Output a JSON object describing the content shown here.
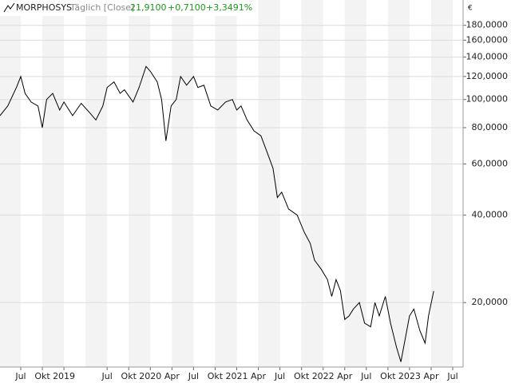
{
  "chart_data": {
    "type": "line",
    "title": "MORPHOSYS",
    "interval_label": "Täglich [Close]",
    "last": "21,9100",
    "change": "+0,7100",
    "change_pct": "+3,3491%",
    "currency": "€",
    "log_scale": true,
    "xlim": [
      2018.26,
      2023.62
    ],
    "ylim": [
      12,
      220
    ],
    "yticks": [
      {
        "value": 20,
        "label": "20,0000"
      },
      {
        "value": 40,
        "label": "40,0000"
      },
      {
        "value": 60,
        "label": "60,0000"
      },
      {
        "value": 80,
        "label": "80,0000"
      },
      {
        "value": 100,
        "label": "100,0000"
      },
      {
        "value": 120,
        "label": "120,0000"
      },
      {
        "value": 140,
        "label": "140,0000"
      },
      {
        "value": 160,
        "label": "160,0000"
      },
      {
        "value": 180,
        "label": "180,0000"
      }
    ],
    "xticks": [
      {
        "value": 2018.5,
        "label": "Jul"
      },
      {
        "value": 2018.75,
        "label": "Okt"
      },
      {
        "value": 2019,
        "label": "2019"
      },
      {
        "value": 2019.5,
        "label": "Jul"
      },
      {
        "value": 2019.75,
        "label": "Okt"
      },
      {
        "value": 2020,
        "label": "2020"
      },
      {
        "value": 2020.25,
        "label": "Apr"
      },
      {
        "value": 2020.5,
        "label": "Jul"
      },
      {
        "value": 2020.75,
        "label": "Okt"
      },
      {
        "value": 2021,
        "label": "2021"
      },
      {
        "value": 2021.25,
        "label": "Apr"
      },
      {
        "value": 2021.5,
        "label": "Jul"
      },
      {
        "value": 2021.75,
        "label": "Okt"
      },
      {
        "value": 2022,
        "label": "2022"
      },
      {
        "value": 2022.25,
        "label": "Apr"
      },
      {
        "value": 2022.5,
        "label": "Jul"
      },
      {
        "value": 2022.75,
        "label": "Okt"
      },
      {
        "value": 2023,
        "label": "2023"
      },
      {
        "value": 2023.25,
        "label": "Apr"
      },
      {
        "value": 2023.5,
        "label": "Jul"
      }
    ],
    "grid": true,
    "x": [
      2018.26,
      2018.35,
      2018.45,
      2018.5,
      2018.55,
      2018.62,
      2018.7,
      2018.75,
      2018.8,
      2018.87,
      2018.95,
      2019.0,
      2019.1,
      2019.2,
      2019.3,
      2019.37,
      2019.45,
      2019.5,
      2019.58,
      2019.65,
      2019.7,
      2019.8,
      2019.87,
      2019.95,
      2020.0,
      2020.08,
      2020.13,
      2020.18,
      2020.24,
      2020.3,
      2020.35,
      2020.42,
      2020.5,
      2020.55,
      2020.62,
      2020.7,
      2020.78,
      2020.87,
      2020.95,
      2021.0,
      2021.05,
      2021.12,
      2021.2,
      2021.28,
      2021.35,
      2021.42,
      2021.47,
      2021.52,
      2021.6,
      2021.7,
      2021.78,
      2021.85,
      2021.9,
      2021.98,
      2022.05,
      2022.1,
      2022.15,
      2022.2,
      2022.25,
      2022.3,
      2022.35,
      2022.42,
      2022.48,
      2022.55,
      2022.6,
      2022.65,
      2022.72,
      2022.78,
      2022.85,
      2022.9,
      2022.95,
      2023.0,
      2023.05,
      2023.12,
      2023.18,
      2023.22,
      2023.28
    ],
    "series": [
      {
        "name": "MORPHOSYS",
        "color": "#000000",
        "values": [
          88,
          95,
          110,
          120,
          105,
          98,
          95,
          80,
          100,
          105,
          92,
          98,
          88,
          97,
          90,
          85,
          95,
          110,
          115,
          105,
          108,
          98,
          110,
          130,
          125,
          115,
          100,
          72,
          95,
          100,
          120,
          112,
          120,
          110,
          112,
          95,
          92,
          98,
          100,
          92,
          95,
          85,
          78,
          75,
          66,
          58,
          46,
          48,
          42,
          40,
          35,
          32,
          28,
          26,
          24,
          21,
          24,
          22,
          17.5,
          18,
          19,
          20,
          17,
          16.5,
          20,
          18,
          21,
          17,
          14,
          12.5,
          15,
          18,
          19,
          16,
          14.5,
          18,
          21.91
        ]
      }
    ]
  }
}
